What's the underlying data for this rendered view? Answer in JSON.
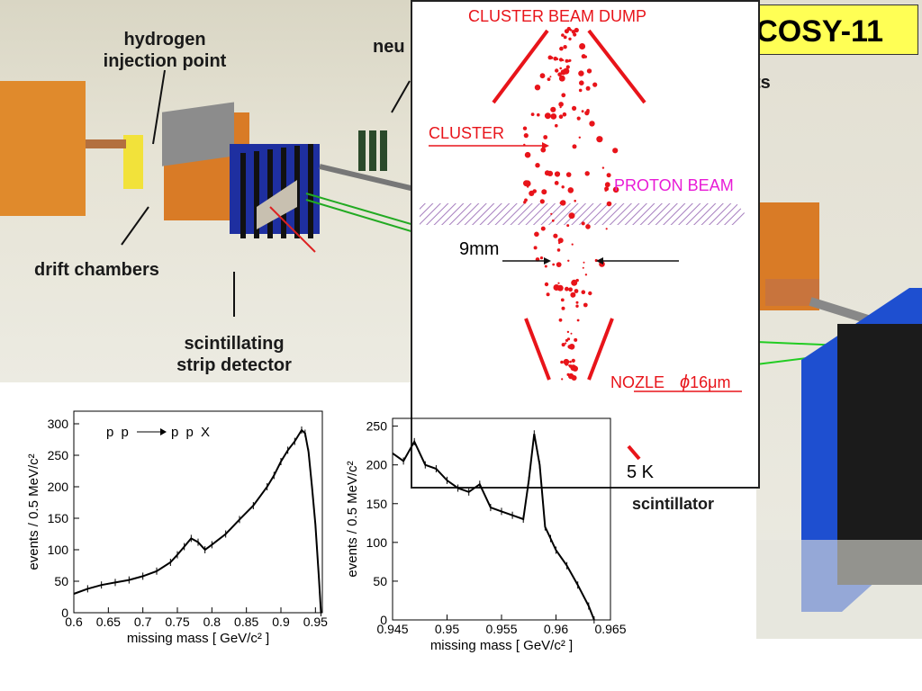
{
  "title": "COSY-11",
  "scene_labels": {
    "hydrogen_injection": [
      "hydrogen",
      "injection point"
    ],
    "neutron_partial": "neu",
    "detectors_partial": "ts",
    "drift_chambers": "drift chambers",
    "scintillating_strip": [
      "scintillating",
      "strip detector"
    ],
    "scintillator_partial": "scintillator",
    "temperature_partial": "5 K"
  },
  "cluster_panel": {
    "beam_dump": "CLUSTER BEAM DUMP",
    "cluster": "CLUSTER",
    "proton_beam": "PROTON BEAM",
    "width": "9mm",
    "nozzle": "NOZLE",
    "nozzle_diameter_symbol": "ϕ",
    "nozzle_diameter": "16μm"
  },
  "colors": {
    "title_bg": "#ffff55",
    "cluster_red": "#e8141a",
    "proton_magenta": "#e81bd6",
    "detector_blue": "#1e4fd0"
  },
  "chart_data": [
    {
      "type": "line",
      "title": "p p → p p X",
      "reaction_left": "p p",
      "reaction_right": "p p  X",
      "xlabel": "missing mass  [ GeV/c² ]",
      "ylabel": "events / 0.5 MeV/c²",
      "xlim": [
        0.6,
        0.96
      ],
      "ylim": [
        0,
        320
      ],
      "xticks": [
        "0.6",
        "0.65",
        "0.7",
        "0.75",
        "0.8",
        "0.85",
        "0.9",
        "0.95"
      ],
      "yticks": [
        "0",
        "50",
        "100",
        "150",
        "200",
        "250",
        "300"
      ],
      "x": [
        0.6,
        0.62,
        0.64,
        0.66,
        0.68,
        0.7,
        0.72,
        0.74,
        0.75,
        0.76,
        0.77,
        0.78,
        0.79,
        0.8,
        0.82,
        0.84,
        0.86,
        0.88,
        0.89,
        0.9,
        0.91,
        0.92,
        0.93,
        0.935,
        0.94,
        0.945,
        0.95,
        0.955,
        0.958
      ],
      "values": [
        30,
        38,
        44,
        48,
        52,
        58,
        66,
        80,
        92,
        105,
        118,
        112,
        100,
        108,
        125,
        148,
        170,
        200,
        218,
        240,
        258,
        272,
        290,
        285,
        255,
        200,
        140,
        55,
        0
      ]
    },
    {
      "type": "line",
      "xlabel": "missing mass  [ GeV/c² ]",
      "ylabel": "events / 0.5 MeV/c²",
      "xlim": [
        0.945,
        0.965
      ],
      "ylim": [
        0,
        260
      ],
      "xticks": [
        "0.945",
        "0.95",
        "0.955",
        "0.96",
        "0.965"
      ],
      "yticks": [
        "0",
        "50",
        "100",
        "150",
        "200",
        "250"
      ],
      "x": [
        0.945,
        0.946,
        0.947,
        0.948,
        0.949,
        0.95,
        0.951,
        0.952,
        0.953,
        0.954,
        0.955,
        0.956,
        0.957,
        0.9575,
        0.958,
        0.9585,
        0.959,
        0.9595,
        0.96,
        0.961,
        0.962,
        0.963,
        0.9635
      ],
      "values": [
        215,
        205,
        230,
        200,
        195,
        180,
        170,
        165,
        175,
        145,
        140,
        135,
        130,
        180,
        240,
        200,
        120,
        105,
        90,
        70,
        45,
        18,
        0
      ]
    }
  ]
}
